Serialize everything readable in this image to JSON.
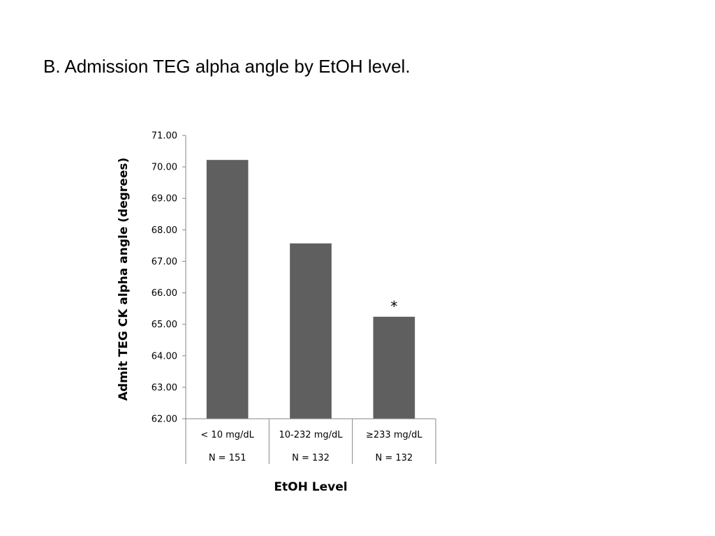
{
  "slide": {
    "title": "B. Admission TEG alpha angle by EtOH level."
  },
  "chart_data": {
    "type": "bar",
    "title": "",
    "xlabel": "EtOH Level",
    "ylabel": "Admit TEG CK alpha angle (degrees)",
    "categories": [
      "< 10 mg/dL",
      "10-232 mg/dL",
      "≥233 mg/dL"
    ],
    "sample_sizes": [
      "N = 151",
      "N = 132",
      "N = 132"
    ],
    "values": [
      70.22,
      67.57,
      65.24
    ],
    "ylim": [
      62,
      71
    ],
    "yticks": [
      62,
      63,
      64,
      65,
      66,
      67,
      68,
      69,
      70,
      71
    ],
    "ytick_labels": [
      "62.00",
      "63.00",
      "64.00",
      "65.00",
      "66.00",
      "67.00",
      "68.00",
      "69.00",
      "70.00",
      "71.00"
    ],
    "annotations": [
      {
        "category": "≥233 mg/dL",
        "text": "*"
      }
    ],
    "bar_color": "#5f5f5f",
    "axis_color": "#868686",
    "grid": false,
    "legend": "none"
  }
}
